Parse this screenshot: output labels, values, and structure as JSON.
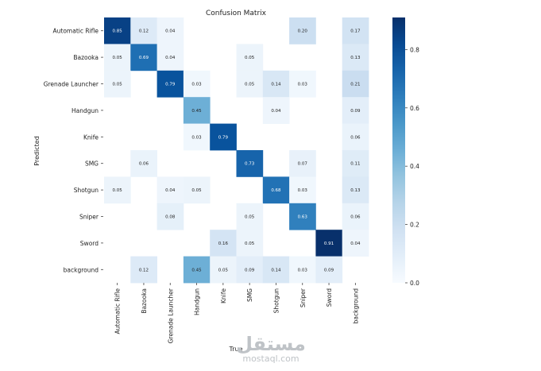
{
  "chart_data": {
    "type": "heatmap",
    "title": "Confusion Matrix",
    "xlabel": "True",
    "ylabel": "Predicted",
    "x_categories": [
      "Automatic Rifle",
      "Bazooka",
      "Grenade Launcher",
      "Handgun",
      "Knife",
      "SMG",
      "Shotgun",
      "Sniper",
      "Sword",
      "background"
    ],
    "y_categories": [
      "Automatic Rifle",
      "Bazooka",
      "Grenade Launcher",
      "Handgun",
      "Knife",
      "SMG",
      "Shotgun",
      "Sniper",
      "Sword",
      "background"
    ],
    "matrix": [
      [
        0.85,
        0.12,
        0.04,
        null,
        null,
        null,
        null,
        0.2,
        null,
        0.17
      ],
      [
        0.05,
        0.69,
        0.04,
        null,
        null,
        0.05,
        null,
        null,
        null,
        0.13
      ],
      [
        0.05,
        null,
        0.79,
        0.03,
        null,
        0.05,
        0.14,
        0.03,
        null,
        0.21
      ],
      [
        null,
        null,
        null,
        0.45,
        null,
        null,
        0.04,
        null,
        null,
        0.09
      ],
      [
        null,
        null,
        null,
        0.03,
        0.79,
        null,
        null,
        null,
        null,
        0.06
      ],
      [
        null,
        0.06,
        null,
        null,
        null,
        0.73,
        null,
        0.07,
        null,
        0.11
      ],
      [
        0.05,
        null,
        0.04,
        0.05,
        null,
        null,
        0.68,
        0.03,
        null,
        0.13
      ],
      [
        null,
        null,
        0.08,
        null,
        null,
        0.05,
        null,
        0.63,
        null,
        0.06
      ],
      [
        null,
        null,
        null,
        null,
        0.16,
        0.05,
        null,
        null,
        0.91,
        0.04
      ],
      [
        null,
        0.12,
        null,
        0.45,
        0.05,
        0.09,
        0.14,
        0.03,
        0.09,
        null
      ]
    ],
    "colorbar": {
      "min": 0.0,
      "max": 0.91,
      "ticks": [
        0.0,
        0.2,
        0.4,
        0.6,
        0.8
      ],
      "tick_labels": [
        "0.0",
        "0.2",
        "0.4",
        "0.6",
        "0.8"
      ]
    },
    "colormap": "Blues"
  },
  "watermark": {
    "arabic": "مستقل",
    "latin": "mostaql.com"
  }
}
